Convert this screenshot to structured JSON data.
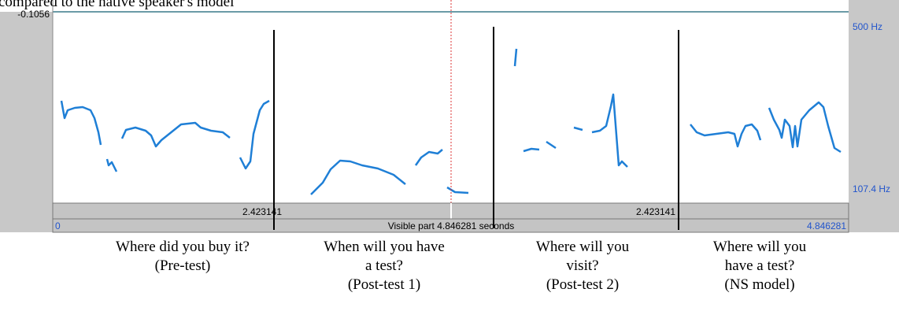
{
  "header": {
    "caption": "compared to the native speaker's model"
  },
  "panel": {
    "top_value": "-0.1056",
    "upper_freq": "500 Hz",
    "lower_freq": "107.4 Hz"
  },
  "bars": {
    "left_duration": "2.423141",
    "right_duration": "2.423141",
    "visible": "Visible part 4.846281 seconds",
    "start": "0",
    "end": "4.846281"
  },
  "captions": [
    [
      "Where did you buy it?",
      "(Pre-test)"
    ],
    [
      "When will you have",
      "a test?",
      "(Post-test 1)"
    ],
    [
      "Where will you",
      "visit?",
      "(Post-test 2)"
    ],
    [
      "Where will you",
      "have a test?",
      "(NS model)"
    ]
  ]
}
